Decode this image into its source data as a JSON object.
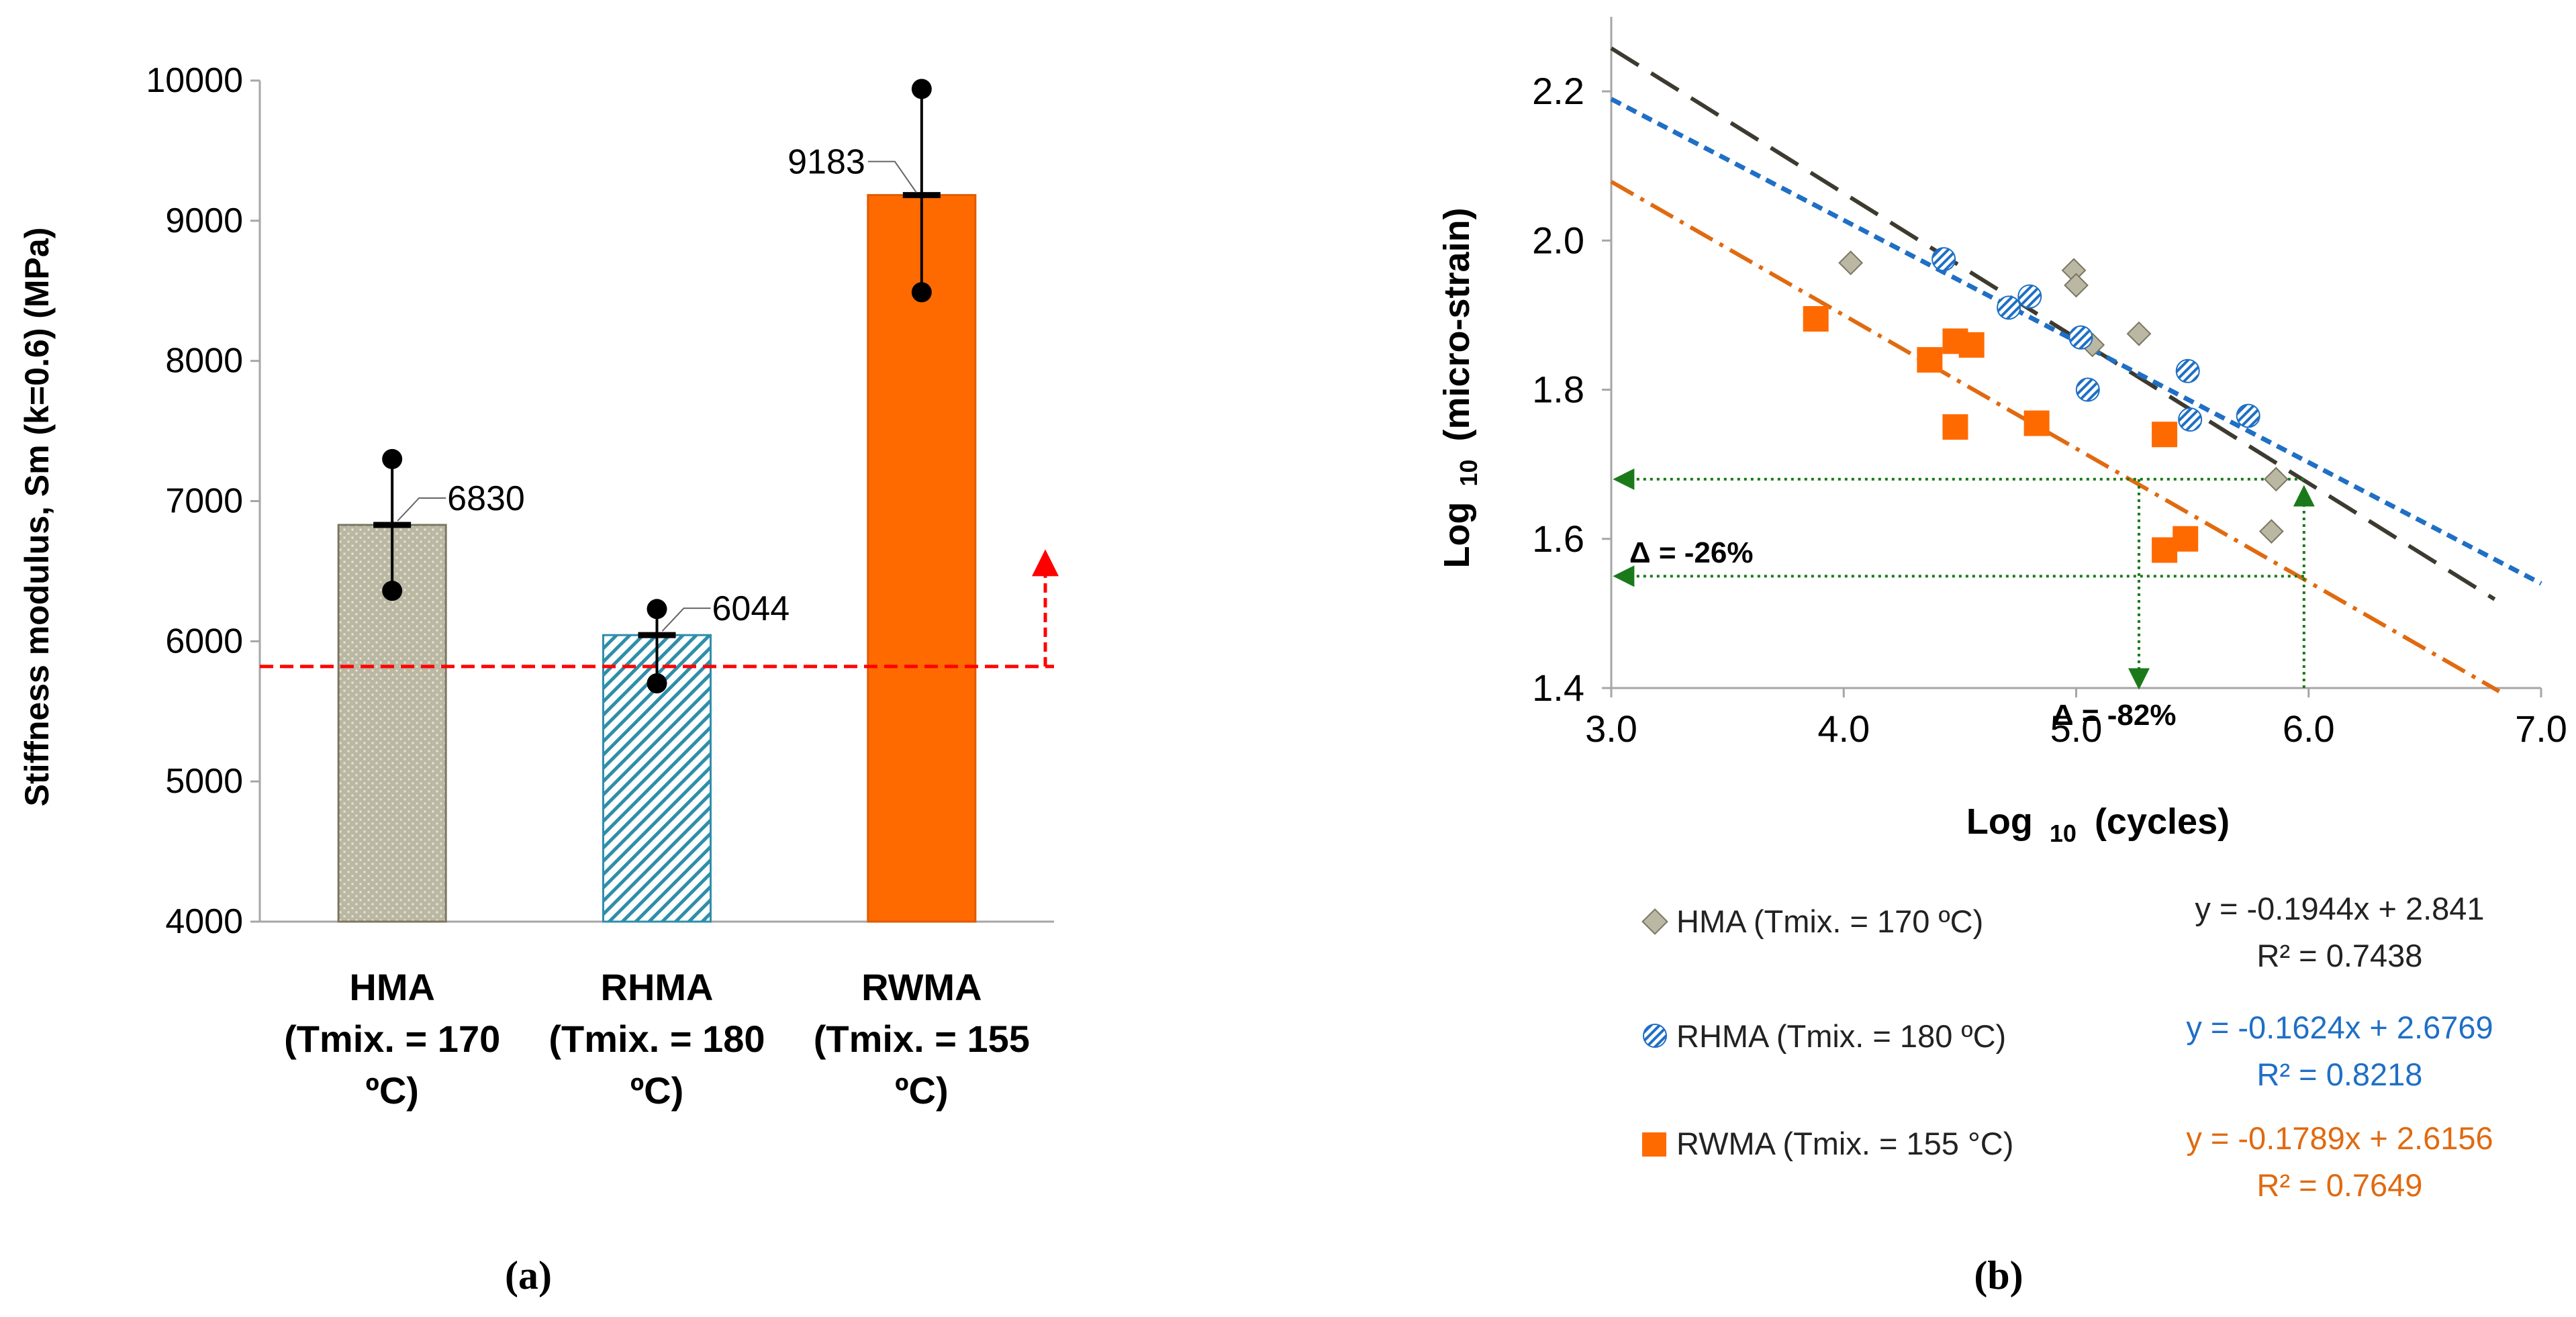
{
  "colors": {
    "hma": "#BAB7A3",
    "hma_line": "#7A7660",
    "hma_trend": "#3D3A30",
    "rhma": "#1F6FC5",
    "rhma_bar": "#2E8EAA",
    "rwma": "#FF6A00",
    "rwma_line": "#E06A10",
    "ref_line": "#FF0000",
    "guide": "#1A7A1A",
    "axis": "#A6A6A6",
    "text": "#000000"
  },
  "chart_data": [
    {
      "id": "a",
      "type": "bar",
      "panel_label": "(a)",
      "title": "",
      "ylabel": "Stiffness modulus, Sm (k=0.6) (MPa)",
      "xlabel": "",
      "ylim": [
        4000,
        10000
      ],
      "yticks": [
        "4000",
        "5000",
        "6000",
        "7000",
        "8000",
        "9000",
        "10000"
      ],
      "grid": false,
      "categories": [
        {
          "key": "HMA",
          "lines": [
            "HMA",
            "(Tmix. = 170",
            "ºC)"
          ]
        },
        {
          "key": "RHMA",
          "lines": [
            "RHMA",
            "(Tmix. = 180",
            "ºC)"
          ]
        },
        {
          "key": "RWMA",
          "lines": [
            "RWMA",
            "(Tmix. = 155",
            "ºC)"
          ]
        }
      ],
      "values": [
        6830,
        6044,
        9183
      ],
      "value_labels": [
        "6830",
        "6044",
        "9183"
      ],
      "error_low": [
        6360,
        5700,
        8490
      ],
      "error_high": [
        7300,
        6230,
        9940
      ],
      "patterns": [
        "dots",
        "diagonal-hatch",
        "solid"
      ],
      "reference_line": 5820
    },
    {
      "id": "b",
      "type": "scatter",
      "panel_label": "(b)",
      "xlabel": "Log 10 (cycles)",
      "xlabel_main": "Log",
      "xlabel_sub": "10",
      "xlabel_rest": "(cycles)",
      "ylabel": "Log10 (micro-strain)",
      "ylabel_main": "Log",
      "ylabel_sub": "10",
      "ylabel_rest": "(micro-strain)",
      "xlim": [
        3.0,
        7.0
      ],
      "ylim": [
        1.4,
        2.3
      ],
      "xticks": [
        "3.0",
        "4.0",
        "5.0",
        "6.0",
        "7.0"
      ],
      "yticks": [
        "1.4",
        "1.6",
        "1.8",
        "2.0",
        "2.2"
      ],
      "grid": false,
      "series": [
        {
          "name": "HMA (Tmix. = 170 ºC)",
          "marker": "diamond",
          "points": [
            [
              4.03,
              1.97
            ],
            [
              4.99,
              1.96
            ],
            [
              5.0,
              1.94
            ],
            [
              5.07,
              1.86
            ],
            [
              5.27,
              1.875
            ],
            [
              5.86,
              1.68
            ],
            [
              5.84,
              1.61
            ]
          ],
          "slope": -0.1944,
          "intercept": 2.841,
          "trend_range": [
            3.0,
            6.8
          ],
          "dash": "48 22",
          "equation": "y = -0.1944x + 2.841",
          "r2": "R² = 0.7438"
        },
        {
          "name": "RHMA (Tmix. = 180 ºC)",
          "marker": "hatched-circle",
          "points": [
            [
              4.43,
              1.975
            ],
            [
              4.71,
              1.91
            ],
            [
              4.8,
              1.925
            ],
            [
              5.02,
              1.87
            ],
            [
              5.05,
              1.8
            ],
            [
              5.48,
              1.825
            ],
            [
              5.49,
              1.76
            ],
            [
              5.74,
              1.765
            ]
          ],
          "slope": -0.1624,
          "intercept": 2.6769,
          "trend_range": [
            3.0,
            7.0
          ],
          "dash": "16 10",
          "equation": "y = -0.1624x + 2.6769",
          "r2": "R² = 0.8218"
        },
        {
          "name": "RWMA (Tmix. = 155 °C)",
          "marker": "square",
          "points": [
            [
              3.88,
              1.895
            ],
            [
              4.37,
              1.84
            ],
            [
              4.48,
              1.865
            ],
            [
              4.55,
              1.86
            ],
            [
              4.48,
              1.75
            ],
            [
              4.83,
              1.755
            ],
            [
              5.38,
              1.74
            ],
            [
              5.38,
              1.585
            ],
            [
              5.47,
              1.6
            ]
          ],
          "slope": -0.1789,
          "intercept": 2.6156,
          "trend_range": [
            3.0,
            6.82
          ],
          "dash": "38 12 6 12",
          "equation": "y = -0.1789x + 2.6156",
          "r2": "R² = 0.7649"
        }
      ],
      "annotations": [
        {
          "text": "Δ = -26%"
        },
        {
          "text": "Δ = -82%"
        }
      ],
      "guides": {
        "y_high": 1.68,
        "y_low": 1.55,
        "x_high": 5.98,
        "x_low": 5.27
      }
    }
  ]
}
